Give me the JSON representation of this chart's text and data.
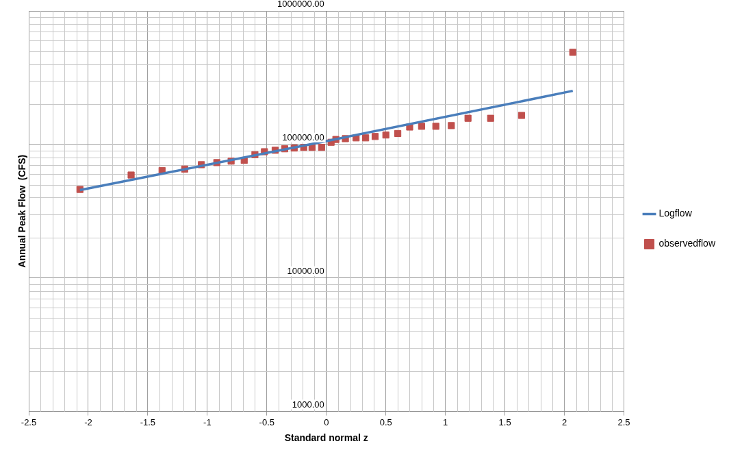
{
  "chart_data": {
    "type": "scatter",
    "xlabel": "Standard normal z",
    "ylabel": "Annual Peak Flow  (CFS)",
    "log": "y",
    "grid": true,
    "legend": "right",
    "xlim": [
      -2.5,
      2.5
    ],
    "xticks": [
      -2.5,
      -2,
      -1.5,
      -1,
      -0.5,
      0,
      0.5,
      1,
      1.5,
      2,
      2.5
    ],
    "ylim": [
      1000,
      1000000
    ],
    "yticks": [
      {
        "value": 1000,
        "label": "1000.00"
      },
      {
        "value": 10000,
        "label": "10000.00"
      },
      {
        "value": 100000,
        "label": "100000.00"
      },
      {
        "value": 1000000,
        "label": "1000000.00"
      }
    ],
    "series": [
      {
        "name": "Logflow",
        "type": "line",
        "color": "#4a7ebb",
        "marker": "none",
        "line_style": "solid",
        "x": [
          -2.07,
          0,
          2.07
        ],
        "values": [
          45500,
          106000,
          252000
        ]
      },
      {
        "name": "observedflow",
        "type": "scatter",
        "color": "#c0504d",
        "marker": "square",
        "x": [
          -2.07,
          -1.64,
          -1.38,
          -1.19,
          -1.05,
          -0.92,
          -0.8,
          -0.69,
          -0.6,
          -0.52,
          -0.43,
          -0.35,
          -0.27,
          -0.19,
          -0.12,
          -0.04,
          0.04,
          0.08,
          0.16,
          0.25,
          0.33,
          0.41,
          0.5,
          0.6,
          0.7,
          0.8,
          0.92,
          1.05,
          1.19,
          1.38,
          1.64,
          2.07
        ],
        "values": [
          46000,
          59000,
          63700,
          65400,
          70500,
          73100,
          75000,
          76000,
          83900,
          88200,
          90500,
          92800,
          94000,
          95100,
          95100,
          95100,
          103800,
          109000,
          110500,
          112000,
          112000,
          114700,
          117700,
          120700,
          135000,
          136800,
          136800,
          138400,
          157000,
          157000,
          165000,
          490000
        ]
      }
    ]
  }
}
